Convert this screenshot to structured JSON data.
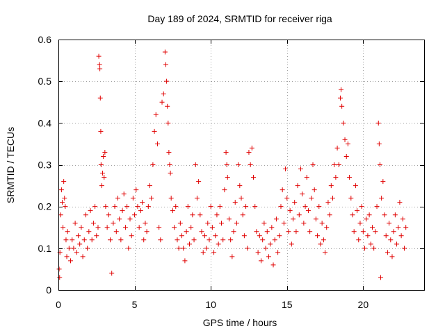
{
  "chart_data": {
    "type": "scatter",
    "title": "Day 189 of 2024, SRMTID for receiver riga",
    "xlabel": "GPS time / hours",
    "ylabel": "SRMTID / TECUs",
    "xlim": [
      0,
      24
    ],
    "ylim": [
      0,
      0.6
    ],
    "xticks": [
      0,
      5,
      10,
      15,
      20
    ],
    "xtick_labels": [
      "0",
      "5",
      "10",
      "15",
      "20"
    ],
    "yticks": [
      0,
      0.1,
      0.2,
      0.3,
      0.4,
      0.5,
      0.6
    ],
    "ytick_labels": [
      "0",
      "0.1",
      "0.2",
      "0.3",
      "0.4",
      "0.5",
      "0.6"
    ],
    "grid": true,
    "marker": "+",
    "color": "#e00000",
    "series": [
      {
        "name": "SRMTID",
        "points": [
          [
            0.05,
            0.05
          ],
          [
            0.08,
            0.03
          ],
          [
            0.1,
            0.09
          ],
          [
            0.15,
            0.18
          ],
          [
            0.2,
            0.24
          ],
          [
            0.25,
            0.21
          ],
          [
            0.3,
            0.15
          ],
          [
            0.35,
            0.26
          ],
          [
            0.4,
            0.22
          ],
          [
            0.45,
            0.2
          ],
          [
            0.5,
            0.12
          ],
          [
            0.55,
            0.08
          ],
          [
            0.6,
            0.14
          ],
          [
            0.7,
            0.1
          ],
          [
            0.8,
            0.07
          ],
          [
            0.9,
            0.12
          ],
          [
            1.0,
            0.1
          ],
          [
            1.1,
            0.16
          ],
          [
            1.2,
            0.09
          ],
          [
            1.3,
            0.13
          ],
          [
            1.4,
            0.11
          ],
          [
            1.5,
            0.15
          ],
          [
            1.6,
            0.08
          ],
          [
            1.7,
            0.12
          ],
          [
            1.8,
            0.18
          ],
          [
            1.9,
            0.1
          ],
          [
            2.0,
            0.14
          ],
          [
            2.1,
            0.19
          ],
          [
            2.2,
            0.12
          ],
          [
            2.3,
            0.16
          ],
          [
            2.4,
            0.2
          ],
          [
            2.5,
            0.13
          ],
          [
            2.6,
            0.15
          ],
          [
            2.65,
            0.56
          ],
          [
            2.7,
            0.54
          ],
          [
            2.72,
            0.53
          ],
          [
            2.75,
            0.46
          ],
          [
            2.78,
            0.38
          ],
          [
            2.8,
            0.3
          ],
          [
            2.85,
            0.25
          ],
          [
            2.9,
            0.28
          ],
          [
            2.95,
            0.32
          ],
          [
            3.0,
            0.27
          ],
          [
            3.05,
            0.33
          ],
          [
            3.1,
            0.2
          ],
          [
            3.2,
            0.15
          ],
          [
            3.3,
            0.18
          ],
          [
            3.4,
            0.12
          ],
          [
            3.5,
            0.04
          ],
          [
            3.6,
            0.16
          ],
          [
            3.7,
            0.2
          ],
          [
            3.8,
            0.14
          ],
          [
            3.9,
            0.22
          ],
          [
            4.0,
            0.17
          ],
          [
            4.1,
            0.12
          ],
          [
            4.2,
            0.19
          ],
          [
            4.3,
            0.23
          ],
          [
            4.4,
            0.15
          ],
          [
            4.5,
            0.2
          ],
          [
            4.6,
            0.1
          ],
          [
            4.7,
            0.17
          ],
          [
            4.8,
            0.13
          ],
          [
            4.9,
            0.22
          ],
          [
            5.0,
            0.18
          ],
          [
            5.1,
            0.24
          ],
          [
            5.2,
            0.2
          ],
          [
            5.3,
            0.15
          ],
          [
            5.4,
            0.19
          ],
          [
            5.5,
            0.21
          ],
          [
            5.6,
            0.12
          ],
          [
            5.7,
            0.16
          ],
          [
            5.8,
            0.14
          ],
          [
            5.9,
            0.2
          ],
          [
            6.0,
            0.25
          ],
          [
            6.1,
            0.22
          ],
          [
            6.2,
            0.3
          ],
          [
            6.3,
            0.38
          ],
          [
            6.4,
            0.42
          ],
          [
            6.5,
            0.35
          ],
          [
            6.6,
            0.15
          ],
          [
            6.7,
            0.12
          ],
          [
            6.8,
            0.45
          ],
          [
            6.9,
            0.47
          ],
          [
            7.0,
            0.57
          ],
          [
            7.05,
            0.54
          ],
          [
            7.1,
            0.5
          ],
          [
            7.15,
            0.44
          ],
          [
            7.2,
            0.4
          ],
          [
            7.25,
            0.33
          ],
          [
            7.3,
            0.3
          ],
          [
            7.35,
            0.28
          ],
          [
            7.4,
            0.22
          ],
          [
            7.5,
            0.19
          ],
          [
            7.6,
            0.15
          ],
          [
            7.7,
            0.2
          ],
          [
            7.8,
            0.12
          ],
          [
            7.9,
            0.1
          ],
          [
            8.0,
            0.16
          ],
          [
            8.1,
            0.13
          ],
          [
            8.2,
            0.1
          ],
          [
            8.3,
            0.07
          ],
          [
            8.4,
            0.14
          ],
          [
            8.5,
            0.2
          ],
          [
            8.6,
            0.11
          ],
          [
            8.7,
            0.15
          ],
          [
            8.8,
            0.18
          ],
          [
            8.9,
            0.12
          ],
          [
            9.0,
            0.3
          ],
          [
            9.1,
            0.22
          ],
          [
            9.2,
            0.26
          ],
          [
            9.3,
            0.18
          ],
          [
            9.4,
            0.14
          ],
          [
            9.5,
            0.09
          ],
          [
            9.6,
            0.13
          ],
          [
            9.7,
            0.1
          ],
          [
            9.8,
            0.16
          ],
          [
            9.9,
            0.12
          ],
          [
            10.0,
            0.2
          ],
          [
            10.1,
            0.15
          ],
          [
            10.2,
            0.09
          ],
          [
            10.3,
            0.13
          ],
          [
            10.4,
            0.18
          ],
          [
            10.5,
            0.11
          ],
          [
            10.6,
            0.2
          ],
          [
            10.7,
            0.16
          ],
          [
            10.8,
            0.12
          ],
          [
            10.9,
            0.24
          ],
          [
            11.0,
            0.33
          ],
          [
            11.05,
            0.3
          ],
          [
            11.1,
            0.27
          ],
          [
            11.2,
            0.17
          ],
          [
            11.3,
            0.12
          ],
          [
            11.4,
            0.08
          ],
          [
            11.5,
            0.14
          ],
          [
            11.6,
            0.21
          ],
          [
            11.7,
            0.16
          ],
          [
            11.8,
            0.3
          ],
          [
            11.9,
            0.25
          ],
          [
            12.0,
            0.22
          ],
          [
            12.1,
            0.18
          ],
          [
            12.2,
            0.13
          ],
          [
            12.3,
            0.2
          ],
          [
            12.4,
            0.1
          ],
          [
            12.5,
            0.33
          ],
          [
            12.6,
            0.3
          ],
          [
            12.7,
            0.34
          ],
          [
            12.8,
            0.27
          ],
          [
            12.9,
            0.2
          ],
          [
            13.0,
            0.14
          ],
          [
            13.1,
            0.09
          ],
          [
            13.2,
            0.13
          ],
          [
            13.3,
            0.07
          ],
          [
            13.4,
            0.12
          ],
          [
            13.5,
            0.16
          ],
          [
            13.6,
            0.1
          ],
          [
            13.7,
            0.14
          ],
          [
            13.8,
            0.08
          ],
          [
            13.9,
            0.11
          ],
          [
            14.0,
            0.15
          ],
          [
            14.1,
            0.06
          ],
          [
            14.2,
            0.12
          ],
          [
            14.3,
            0.17
          ],
          [
            14.4,
            0.09
          ],
          [
            14.5,
            0.13
          ],
          [
            14.6,
            0.2
          ],
          [
            14.7,
            0.24
          ],
          [
            14.8,
            0.16
          ],
          [
            14.9,
            0.29
          ],
          [
            15.0,
            0.22
          ],
          [
            15.1,
            0.14
          ],
          [
            15.2,
            0.19
          ],
          [
            15.3,
            0.11
          ],
          [
            15.4,
            0.17
          ],
          [
            15.5,
            0.21
          ],
          [
            15.6,
            0.14
          ],
          [
            15.7,
            0.25
          ],
          [
            15.8,
            0.18
          ],
          [
            15.9,
            0.29
          ],
          [
            16.0,
            0.23
          ],
          [
            16.1,
            0.16
          ],
          [
            16.2,
            0.2
          ],
          [
            16.3,
            0.27
          ],
          [
            16.4,
            0.19
          ],
          [
            16.5,
            0.14
          ],
          [
            16.6,
            0.22
          ],
          [
            16.7,
            0.3
          ],
          [
            16.8,
            0.24
          ],
          [
            16.9,
            0.17
          ],
          [
            17.0,
            0.13
          ],
          [
            17.1,
            0.2
          ],
          [
            17.2,
            0.11
          ],
          [
            17.3,
            0.16
          ],
          [
            17.4,
            0.12
          ],
          [
            17.5,
            0.09
          ],
          [
            17.6,
            0.15
          ],
          [
            17.7,
            0.21
          ],
          [
            17.8,
            0.18
          ],
          [
            17.9,
            0.25
          ],
          [
            18.0,
            0.22
          ],
          [
            18.1,
            0.3
          ],
          [
            18.2,
            0.27
          ],
          [
            18.3,
            0.34
          ],
          [
            18.4,
            0.3
          ],
          [
            18.5,
            0.46
          ],
          [
            18.55,
            0.48
          ],
          [
            18.6,
            0.44
          ],
          [
            18.7,
            0.4
          ],
          [
            18.8,
            0.36
          ],
          [
            18.9,
            0.32
          ],
          [
            19.0,
            0.35
          ],
          [
            19.1,
            0.27
          ],
          [
            19.2,
            0.22
          ],
          [
            19.3,
            0.18
          ],
          [
            19.4,
            0.14
          ],
          [
            19.5,
            0.25
          ],
          [
            19.6,
            0.19
          ],
          [
            19.7,
            0.12
          ],
          [
            19.8,
            0.16
          ],
          [
            19.9,
            0.2
          ],
          [
            20.0,
            0.14
          ],
          [
            20.1,
            0.1
          ],
          [
            20.2,
            0.17
          ],
          [
            20.3,
            0.13
          ],
          [
            20.4,
            0.18
          ],
          [
            20.5,
            0.11
          ],
          [
            20.6,
            0.15
          ],
          [
            20.7,
            0.1
          ],
          [
            20.8,
            0.14
          ],
          [
            20.9,
            0.2
          ],
          [
            21.0,
            0.4
          ],
          [
            21.05,
            0.35
          ],
          [
            21.1,
            0.3
          ],
          [
            21.15,
            0.03
          ],
          [
            21.2,
            0.22
          ],
          [
            21.3,
            0.26
          ],
          [
            21.4,
            0.18
          ],
          [
            21.5,
            0.13
          ],
          [
            21.6,
            0.09
          ],
          [
            21.7,
            0.16
          ],
          [
            21.8,
            0.12
          ],
          [
            21.9,
            0.08
          ],
          [
            22.0,
            0.14
          ],
          [
            22.1,
            0.18
          ],
          [
            22.2,
            0.11
          ],
          [
            22.3,
            0.15
          ],
          [
            22.4,
            0.21
          ],
          [
            22.5,
            0.13
          ],
          [
            22.6,
            0.17
          ],
          [
            22.7,
            0.1
          ],
          [
            22.8,
            0.15
          ]
        ]
      }
    ]
  }
}
